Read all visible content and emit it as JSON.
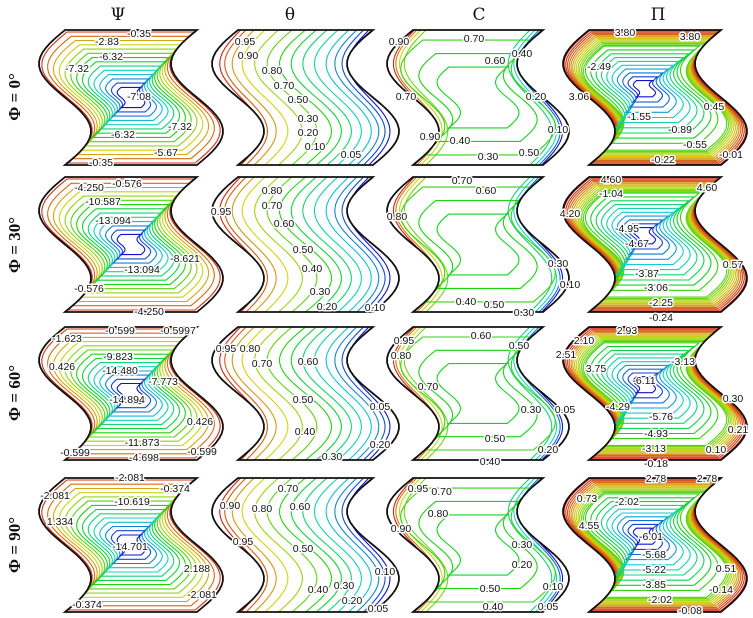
{
  "column_headers": [
    "Ψ",
    "θ",
    "C",
    "Π"
  ],
  "row_labels": [
    "Φ = 0°",
    "Φ = 30°",
    "Φ = 60°",
    "Φ = 90°"
  ],
  "colormap": {
    "low": "#1a1aa0",
    "mid": "#22c022",
    "high": "#e0301e"
  },
  "chart_data": [
    {
      "type": "contour",
      "variable": "Ψ",
      "phi": "0°",
      "contour_labels": [
        "-2.83",
        "-0.35",
        "-6.32",
        "-7.32",
        "-7.08",
        "-7.32",
        "-6.32",
        "-5.67",
        "-0.35"
      ]
    },
    {
      "type": "contour",
      "variable": "θ",
      "phi": "0°",
      "contour_labels": [
        "0.95",
        "0.90",
        "0.80",
        "0.70",
        "0.50",
        "0.30",
        "0.20",
        "0.10",
        "0.05"
      ]
    },
    {
      "type": "contour",
      "variable": "C",
      "phi": "0°",
      "contour_labels": [
        "0.90",
        "0.70",
        "0.60",
        "0.40",
        "0.70",
        "0.20",
        "0.10",
        "0.90",
        "0.40",
        "0.30",
        "0.50"
      ]
    },
    {
      "type": "contour",
      "variable": "Π",
      "phi": "0°",
      "contour_labels": [
        "3.80",
        "3.80",
        "-2.49",
        "3.06",
        "0.45",
        "-1.55",
        "-0.89",
        "-0.55",
        "-0.22",
        "-0.01"
      ]
    },
    {
      "type": "contour",
      "variable": "Ψ",
      "phi": "30°",
      "contour_labels": [
        "-4.250",
        "-0.576",
        "-10.587",
        "-13.094",
        "-8.621",
        "-13.094",
        "-0.576",
        "-4.250"
      ]
    },
    {
      "type": "contour",
      "variable": "θ",
      "phi": "30°",
      "contour_labels": [
        "0.95",
        "0.80",
        "0.70",
        "0.60",
        "0.50",
        "0.40",
        "0.30",
        "0.20",
        "0.10"
      ]
    },
    {
      "type": "contour",
      "variable": "C",
      "phi": "30°",
      "contour_labels": [
        "0.70",
        "0.60",
        "0.80",
        "0.30",
        "0.10",
        "0.40",
        "0.50",
        "0.30"
      ]
    },
    {
      "type": "contour",
      "variable": "Π",
      "phi": "30°",
      "contour_labels": [
        "4.60",
        "-1.04",
        "4.60",
        "4.20",
        "-4.95",
        "-4.67",
        "0.57",
        "-3.87",
        "-3.06",
        "-2.25",
        "-0.24"
      ]
    },
    {
      "type": "contour",
      "variable": "Ψ",
      "phi": "60°",
      "contour_labels": [
        "-0.599",
        "-0.5997",
        "-1.623",
        "0.426",
        "-9.823",
        "-14.480",
        "-7.773",
        "-14.894",
        "0.426",
        "-11.873",
        "-0.599",
        "-0.599",
        "-4.698"
      ]
    },
    {
      "type": "contour",
      "variable": "θ",
      "phi": "60°",
      "contour_labels": [
        "0.95",
        "0.80",
        "0.70",
        "0.60",
        "0.50",
        "0.40",
        "0.30",
        "0.05",
        "0.20"
      ]
    },
    {
      "type": "contour",
      "variable": "C",
      "phi": "60°",
      "contour_labels": [
        "0.95",
        "0.60",
        "0.50",
        "0.80",
        "0.70",
        "0.30",
        "0.05",
        "0.50",
        "0.20",
        "0.40"
      ]
    },
    {
      "type": "contour",
      "variable": "Π",
      "phi": "60°",
      "contour_labels": [
        "2.93",
        "2.10",
        "2.51",
        "3.75",
        "-3.13",
        "-6.11",
        "-4.29",
        "0.30",
        "-5.76",
        "0.21",
        "-4.93",
        "0.10",
        "-3.13",
        "-0.18"
      ]
    },
    {
      "type": "contour",
      "variable": "Ψ",
      "phi": "90°",
      "contour_labels": [
        "-2.081",
        "-0.374",
        "-2.081",
        "-10.619",
        "1.334",
        "-14.701",
        "2.188",
        "-2.081",
        "-0.374"
      ]
    },
    {
      "type": "contour",
      "variable": "θ",
      "phi": "90°",
      "contour_labels": [
        "0.70",
        "0.90",
        "0.80",
        "0.60",
        "0.95",
        "0.50",
        "0.40",
        "0.30",
        "0.20",
        "0.10",
        "0.05"
      ]
    },
    {
      "type": "contour",
      "variable": "C",
      "phi": "90°",
      "contour_labels": [
        "0.95",
        "0.70",
        "0.80",
        "0.90",
        "0.30",
        "0.20",
        "0.50",
        "0.10",
        "0.40",
        "0.05"
      ]
    },
    {
      "type": "contour",
      "variable": "Π",
      "phi": "90°",
      "contour_labels": [
        "2.78",
        "2.78",
        "0.73",
        "-2.02",
        "4.55",
        "-6.01",
        "-5.68",
        "0.51",
        "-5.22",
        "-3.85",
        "-0.14",
        "-2.02",
        "-0.08"
      ]
    }
  ]
}
